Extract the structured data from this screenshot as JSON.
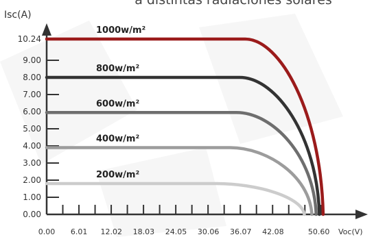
{
  "chart_data": {
    "type": "line",
    "title": "a distintas radiaciones solares",
    "xlabel": "Voc(V)",
    "ylabel": "Isc(A)",
    "xlim": [
      0,
      54.6
    ],
    "ylim": [
      0,
      10.8
    ],
    "x_ticks": [
      0.0,
      6.01,
      12.02,
      18.03,
      24.05,
      30.06,
      36.07,
      42.08,
      50.6
    ],
    "x_tick_labels": [
      "0.00",
      "6.01",
      "12.02",
      "18.03",
      "24.05",
      "30.06",
      "36.07",
      "42.08",
      "50.60"
    ],
    "y_ticks": [
      0,
      1,
      2,
      3,
      4,
      5,
      6,
      7,
      8,
      9,
      10.24
    ],
    "y_tick_labels": [
      "0.00",
      "1.00",
      "2.00",
      "3.00",
      "4.00",
      "5.00",
      "6.00",
      "7.00",
      "8.00",
      "9.00",
      "10.24"
    ],
    "x_minor_ticks": [
      3.0,
      6.0,
      9.0,
      12.0,
      15.0,
      18.0,
      21.0,
      24.0,
      27.0,
      30.0,
      33.0,
      36.0,
      39.0,
      42.0,
      45.0,
      48.0,
      51.0
    ],
    "grid": false,
    "series": [
      {
        "name": "1000w/m²",
        "color": "#9b1b1b",
        "isc": 10.24,
        "knee_v": 36.9,
        "voc": 51.4
      },
      {
        "name": "800w/m²",
        "color": "#333333",
        "isc": 8.0,
        "knee_v": 35.9,
        "voc": 50.7
      },
      {
        "name": "600w/m²",
        "color": "#6e6e6e",
        "isc": 5.95,
        "knee_v": 35.3,
        "voc": 50.1
      },
      {
        "name": "400w/m²",
        "color": "#9c9c9c",
        "isc": 3.9,
        "knee_v": 34.1,
        "voc": 49.3
      },
      {
        "name": "200w/m²",
        "color": "#cccccc",
        "isc": 1.8,
        "knee_v": 31.6,
        "voc": 47.9
      }
    ]
  }
}
